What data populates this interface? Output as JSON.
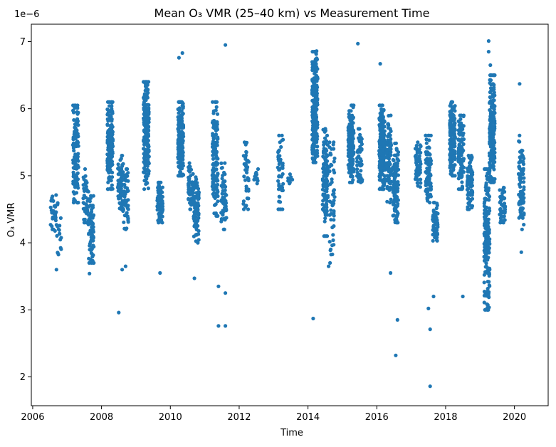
{
  "chart_data": {
    "type": "scatter",
    "title": "Mean O₃ VMR (25–40 km) vs Measurement Time",
    "xlabel": "Time",
    "ylabel": "O₃ VMR",
    "offset_label": "1e−6",
    "xlim": [
      2005.96,
      2020.98
    ],
    "ylim": [
      1.57,
      7.26
    ],
    "x_ticks": [
      2006,
      2008,
      2010,
      2012,
      2014,
      2016,
      2018,
      2020
    ],
    "x_tick_labels": [
      "2006",
      "2008",
      "2010",
      "2012",
      "2014",
      "2016",
      "2018",
      "2020"
    ],
    "y_ticks": [
      2,
      3,
      4,
      5,
      6,
      7
    ],
    "y_tick_labels": [
      "2",
      "3",
      "4",
      "5",
      "6",
      "7"
    ],
    "grid": false,
    "legend": "none",
    "marker_color": "#1f77b4",
    "series": [
      {
        "values_scale": "1e-6",
        "clusters": [
          {
            "x": 2006.6,
            "y_min": 4.1,
            "y_max": 4.75,
            "n": 30
          },
          {
            "x": 2006.75,
            "y_min": 3.6,
            "y_max": 4.75,
            "n": 20
          },
          {
            "x": 2007.25,
            "y_min": 4.6,
            "y_max": 6.05,
            "n": 130
          },
          {
            "x": 2007.55,
            "y_min": 4.3,
            "y_max": 5.1,
            "n": 40
          },
          {
            "x": 2007.7,
            "y_min": 3.7,
            "y_max": 4.7,
            "n": 80
          },
          {
            "x": 2008.25,
            "y_min": 4.8,
            "y_max": 6.1,
            "n": 160
          },
          {
            "x": 2008.55,
            "y_min": 4.5,
            "y_max": 5.3,
            "n": 70
          },
          {
            "x": 2008.7,
            "y_min": 4.2,
            "y_max": 5.1,
            "n": 60
          },
          {
            "x": 2009.3,
            "y_min": 4.8,
            "y_max": 6.4,
            "n": 200
          },
          {
            "x": 2009.7,
            "y_min": 4.3,
            "y_max": 4.9,
            "n": 80
          },
          {
            "x": 2010.3,
            "y_min": 5.0,
            "y_max": 6.1,
            "n": 190
          },
          {
            "x": 2010.6,
            "y_min": 4.5,
            "y_max": 5.2,
            "n": 60
          },
          {
            "x": 2010.75,
            "y_min": 4.0,
            "y_max": 5.0,
            "n": 90
          },
          {
            "x": 2011.3,
            "y_min": 4.4,
            "y_max": 6.1,
            "n": 140
          },
          {
            "x": 2011.55,
            "y_min": 4.2,
            "y_max": 5.2,
            "n": 60
          },
          {
            "x": 2012.2,
            "y_min": 4.5,
            "y_max": 5.5,
            "n": 40
          },
          {
            "x": 2012.5,
            "y_min": 4.8,
            "y_max": 5.1,
            "n": 12
          },
          {
            "x": 2013.2,
            "y_min": 4.5,
            "y_max": 5.6,
            "n": 50
          },
          {
            "x": 2013.5,
            "y_min": 4.8,
            "y_max": 5.1,
            "n": 10
          },
          {
            "x": 2014.2,
            "y_min": 5.2,
            "y_max": 6.85,
            "n": 260
          },
          {
            "x": 2014.5,
            "y_min": 4.1,
            "y_max": 5.7,
            "n": 120
          },
          {
            "x": 2014.7,
            "y_min": 3.7,
            "y_max": 5.5,
            "n": 50
          },
          {
            "x": 2015.25,
            "y_min": 4.9,
            "y_max": 6.05,
            "n": 150
          },
          {
            "x": 2015.5,
            "y_min": 4.9,
            "y_max": 5.7,
            "n": 50
          },
          {
            "x": 2016.15,
            "y_min": 4.8,
            "y_max": 6.05,
            "n": 220
          },
          {
            "x": 2016.35,
            "y_min": 4.6,
            "y_max": 5.9,
            "n": 90
          },
          {
            "x": 2016.55,
            "y_min": 4.3,
            "y_max": 5.5,
            "n": 110
          },
          {
            "x": 2017.2,
            "y_min": 4.8,
            "y_max": 5.5,
            "n": 60
          },
          {
            "x": 2017.5,
            "y_min": 4.6,
            "y_max": 5.6,
            "n": 100
          },
          {
            "x": 2017.7,
            "y_min": 4.0,
            "y_max": 4.6,
            "n": 70
          },
          {
            "x": 2018.2,
            "y_min": 5.0,
            "y_max": 6.1,
            "n": 160
          },
          {
            "x": 2018.45,
            "y_min": 4.8,
            "y_max": 5.9,
            "n": 110
          },
          {
            "x": 2018.7,
            "y_min": 4.5,
            "y_max": 5.3,
            "n": 80
          },
          {
            "x": 2019.2,
            "y_min": 3.0,
            "y_max": 5.1,
            "n": 180
          },
          {
            "x": 2019.35,
            "y_min": 4.9,
            "y_max": 6.5,
            "n": 200
          },
          {
            "x": 2019.65,
            "y_min": 4.3,
            "y_max": 4.9,
            "n": 50
          },
          {
            "x": 2020.2,
            "y_min": 4.2,
            "y_max": 5.6,
            "n": 90
          }
        ],
        "outliers": [
          {
            "x": 2008.5,
            "y": 2.96
          },
          {
            "x": 2010.25,
            "y": 6.76
          },
          {
            "x": 2010.35,
            "y": 6.83
          },
          {
            "x": 2011.6,
            "y": 6.95
          },
          {
            "x": 2011.4,
            "y": 2.76
          },
          {
            "x": 2011.6,
            "y": 2.76
          },
          {
            "x": 2011.4,
            "y": 3.35
          },
          {
            "x": 2011.6,
            "y": 3.25
          },
          {
            "x": 2014.15,
            "y": 2.87
          },
          {
            "x": 2014.25,
            "y": 6.86
          },
          {
            "x": 2015.45,
            "y": 6.97
          },
          {
            "x": 2016.1,
            "y": 6.67
          },
          {
            "x": 2016.55,
            "y": 2.32
          },
          {
            "x": 2016.6,
            "y": 2.85
          },
          {
            "x": 2017.55,
            "y": 1.86
          },
          {
            "x": 2017.55,
            "y": 2.71
          },
          {
            "x": 2017.5,
            "y": 3.02
          },
          {
            "x": 2017.65,
            "y": 3.2
          },
          {
            "x": 2019.25,
            "y": 7.01
          },
          {
            "x": 2019.25,
            "y": 6.85
          },
          {
            "x": 2019.3,
            "y": 6.65
          },
          {
            "x": 2020.15,
            "y": 6.37
          },
          {
            "x": 2020.2,
            "y": 3.86
          },
          {
            "x": 2009.7,
            "y": 3.55
          },
          {
            "x": 2010.7,
            "y": 3.47
          },
          {
            "x": 2007.65,
            "y": 3.54
          },
          {
            "x": 2008.6,
            "y": 3.6
          },
          {
            "x": 2008.7,
            "y": 3.65
          },
          {
            "x": 2018.5,
            "y": 3.2
          },
          {
            "x": 2016.4,
            "y": 3.55
          },
          {
            "x": 2014.6,
            "y": 3.65
          }
        ]
      }
    ]
  }
}
